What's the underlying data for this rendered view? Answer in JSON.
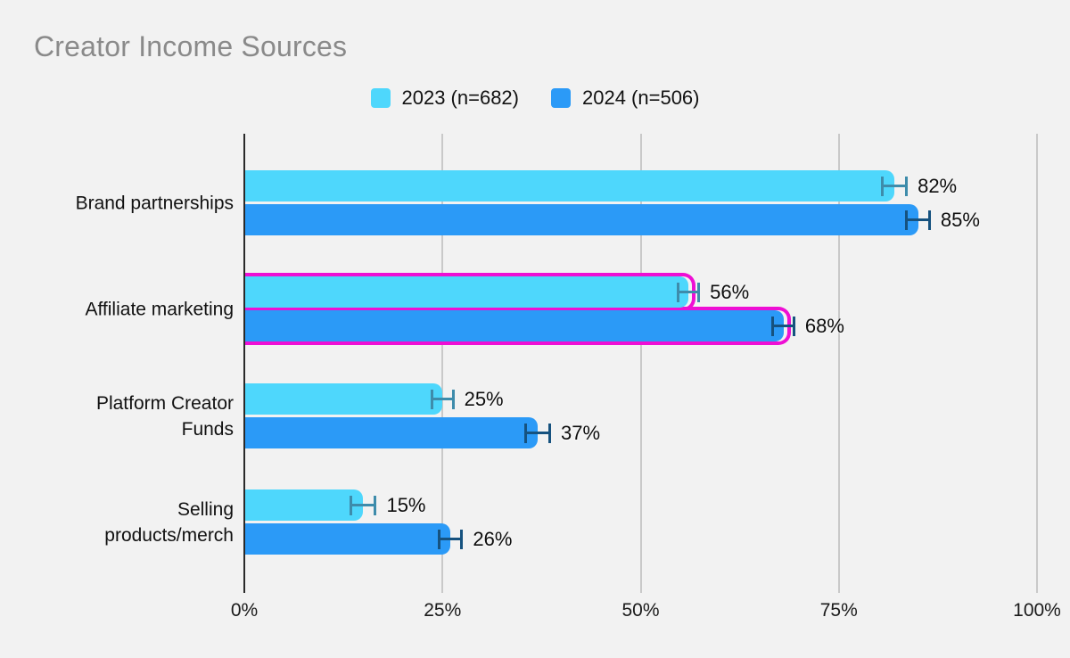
{
  "chart_data": {
    "type": "bar",
    "orientation": "horizontal",
    "title": "Creator Income Sources",
    "categories": [
      "Brand partnerships",
      "Affiliate marketing",
      "Platform Creator\nFunds",
      "Selling\nproducts/merch"
    ],
    "series": [
      {
        "name": "2023 (n=682)",
        "color": "#4ed7fc",
        "error_color": "#3e8cab",
        "values": [
          82,
          56,
          25,
          15
        ],
        "errors": [
          1.7,
          1.5,
          1.5,
          1.7
        ],
        "labels": [
          "82%",
          "56%",
          "25%",
          "15%"
        ]
      },
      {
        "name": "2024 (n=506)",
        "color": "#2b9af7",
        "error_color": "#16527f",
        "values": [
          85,
          68,
          37,
          26
        ],
        "errors": [
          1.6,
          1.5,
          1.7,
          1.6
        ],
        "labels": [
          "85%",
          "68%",
          "37%",
          "26%"
        ]
      }
    ],
    "x_ticks": [
      "0%",
      "25%",
      "50%",
      "75%",
      "100%"
    ],
    "xlim": [
      0,
      100
    ],
    "grid": true,
    "legend_position": "top-center",
    "highlighted_category": "Affiliate marketing",
    "highlight_color": "#ee0fd4"
  },
  "colors": {
    "background": "#f2f2f2",
    "title": "#8a8a8a",
    "axis_line": "#2a2a2a",
    "gridline": "#c9c9c9",
    "text": "#111111"
  }
}
